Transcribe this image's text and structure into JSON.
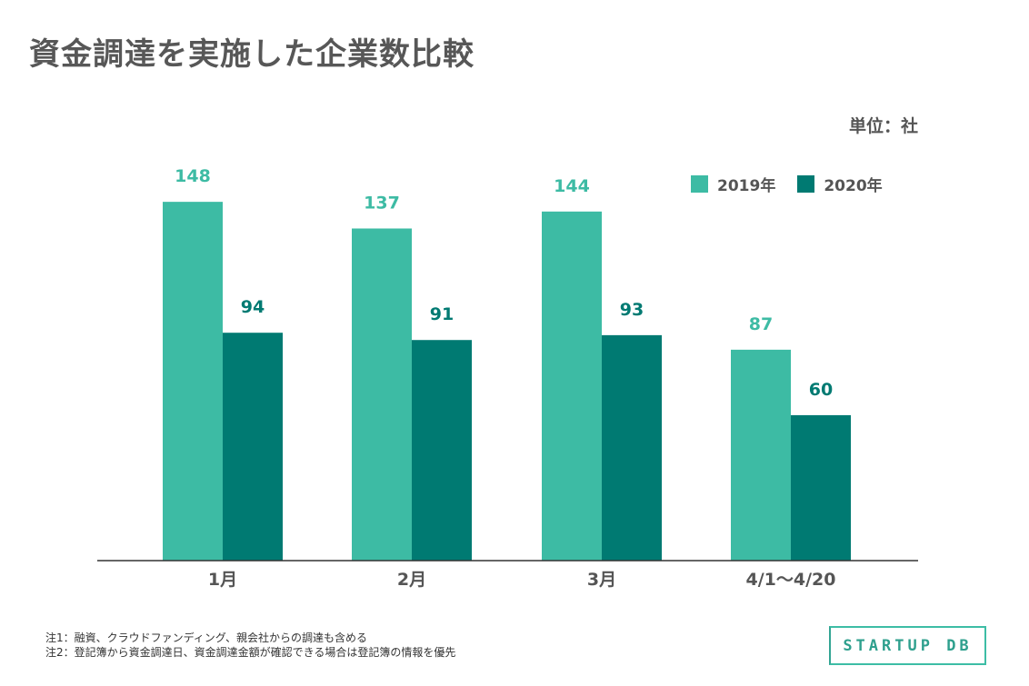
{
  "title": "資金調達を実施した企業数比較",
  "unit": "単位：社",
  "legend": [
    {
      "label": "2019年",
      "color": "#3dbba4"
    },
    {
      "label": "2020年",
      "color": "#007a72"
    }
  ],
  "chart_data": {
    "type": "bar",
    "categories": [
      "1月",
      "2月",
      "3月",
      "4/1〜4/20"
    ],
    "series": [
      {
        "name": "2019年",
        "color": "#3dbba4",
        "values": [
          148,
          137,
          144,
          87
        ]
      },
      {
        "name": "2020年",
        "color": "#007a72",
        "values": [
          94,
          91,
          93,
          60
        ]
      }
    ],
    "ylim": [
      0,
      160
    ],
    "grid": false,
    "legend_position": "top-right"
  },
  "notes": [
    "注1：融資、クラウドファンディング、親会社からの調達も含める",
    "注2：登記簿から資金調達日、資金調達金額が確認できる場合は登記簿の情報を優先"
  ],
  "logo": "STARTUP DB"
}
